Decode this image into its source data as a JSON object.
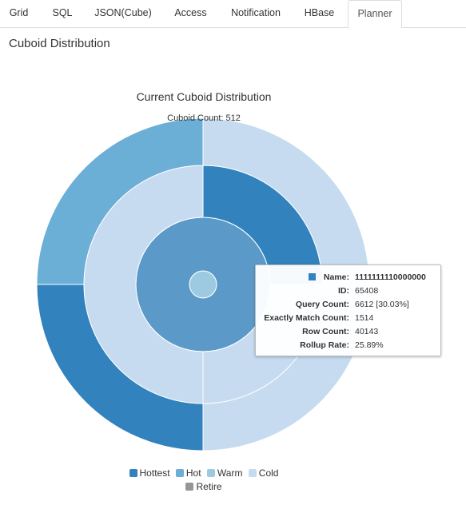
{
  "tabs": [
    {
      "label": "Grid",
      "active": false
    },
    {
      "label": "SQL",
      "active": false
    },
    {
      "label": "JSON(Cube)",
      "active": false
    },
    {
      "label": "Access",
      "active": false
    },
    {
      "label": "Notification",
      "active": false
    },
    {
      "label": "HBase",
      "active": false
    },
    {
      "label": "Planner",
      "active": true
    }
  ],
  "section_title": "Cuboid Distribution",
  "chart_data": {
    "type": "sunburst",
    "title": "Current Cuboid Distribution",
    "subtitle": "Cuboid Count: 512",
    "rings": [
      {
        "level": 0,
        "segments": [
          {
            "fraction": 1.0,
            "status": "Warm"
          }
        ]
      },
      {
        "level": 1,
        "segments": [
          {
            "fraction": 1.0,
            "status": "Hot"
          }
        ]
      },
      {
        "level": 2,
        "segments": [
          {
            "fraction": 0.25,
            "status": "Hottest"
          },
          {
            "fraction": 0.25,
            "status": "Cold"
          },
          {
            "fraction": 0.5,
            "status": "Cold"
          }
        ]
      },
      {
        "level": 3,
        "segments": [
          {
            "fraction": 0.25,
            "status": "Cold"
          },
          {
            "fraction": 0.25,
            "status": "Cold"
          },
          {
            "fraction": 0.25,
            "status": "Hottest"
          },
          {
            "fraction": 0.25,
            "status": "Hot"
          }
        ]
      }
    ],
    "colors": {
      "Hottest": "#3182bd",
      "Hot": "#6baed6",
      "Warm": "#9ecae1",
      "Cold": "#c6dbef",
      "Retire": "#969696",
      "Highlight": "#5b9ac8"
    },
    "legend": [
      "Hottest",
      "Hot",
      "Warm",
      "Cold",
      "Retire"
    ]
  },
  "tooltip": {
    "rows": [
      {
        "key": "Name:",
        "value": "1111111110000000"
      },
      {
        "key": "ID:",
        "value": "65408"
      },
      {
        "key": "Query Count:",
        "value": "6612 [30.03%]"
      },
      {
        "key": "Exactly Match Count:",
        "value": "1514"
      },
      {
        "key": "Row Count:",
        "value": "40143"
      },
      {
        "key": "Rollup Rate:",
        "value": "25.89%"
      }
    ]
  }
}
